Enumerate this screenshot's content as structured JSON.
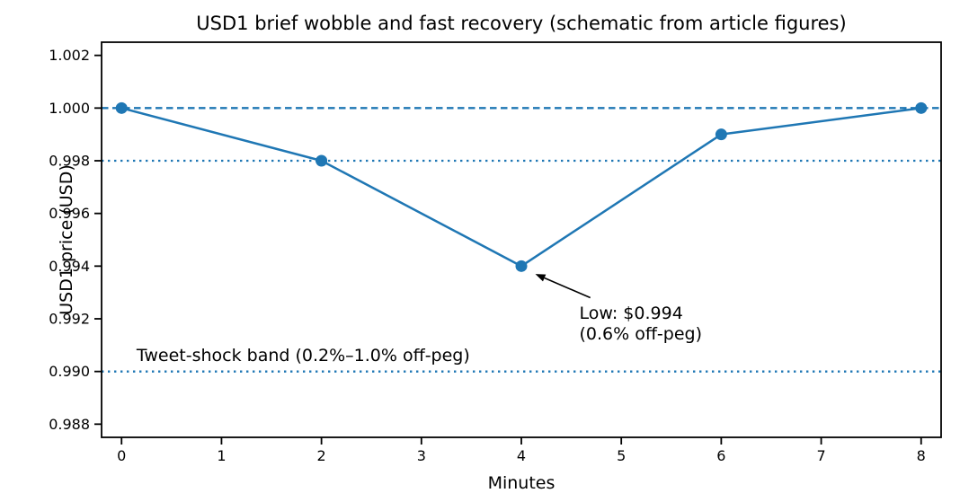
{
  "figure": {
    "background": "#ffffff"
  },
  "chart_data": {
    "type": "line",
    "title": "USD1 brief wobble and fast recovery (schematic from article figures)",
    "xlabel": "Minutes",
    "ylabel": "USD1 price (USD)",
    "x": [
      0,
      2,
      4,
      6,
      8
    ],
    "y": [
      1.0,
      0.998,
      0.994,
      0.999,
      1.0
    ],
    "series_name": "USD1 price",
    "xlim": [
      -0.2,
      8.2
    ],
    "ylim": [
      0.9875,
      1.0025
    ],
    "xticks": [
      0,
      1,
      2,
      3,
      4,
      5,
      6,
      7,
      8
    ],
    "xtick_labels": [
      "0",
      "1",
      "2",
      "3",
      "4",
      "5",
      "6",
      "7",
      "8"
    ],
    "yticks": [
      0.988,
      0.99,
      0.992,
      0.994,
      0.996,
      0.998,
      1.0,
      1.002
    ],
    "ytick_labels": [
      "0.988",
      "0.990",
      "0.992",
      "0.994",
      "0.996",
      "0.998",
      "1.000",
      "1.002"
    ],
    "grid": false,
    "legend": null,
    "line_color": "#1f77b4",
    "marker": "circle",
    "marker_radius": 6.5,
    "axis_color": "#000000",
    "reference_lines": [
      {
        "name": "peg-line",
        "y": 1.0,
        "style": "dashed",
        "color": "#1f77b4"
      },
      {
        "name": "band-upper-line",
        "y": 0.998,
        "style": "dotted",
        "color": "#1f77b4"
      },
      {
        "name": "band-lower-line",
        "y": 0.99,
        "style": "dotted",
        "color": "#1f77b4"
      }
    ],
    "annotation": {
      "lines": [
        "Low: $0.994",
        "(0.6% off-peg)"
      ],
      "point": {
        "x": 4.0,
        "y": 0.994
      },
      "text_pos": {
        "x": 4.58,
        "y": 0.992
      },
      "arrow_tail": {
        "x": 4.69,
        "y": 0.9928
      },
      "arrow_head": {
        "x": 4.14,
        "y": 0.9937
      },
      "arrow_color": "#000000"
    },
    "band_label": {
      "text": "Tweet-shock band (0.2%–1.0% off-peg)",
      "pos": {
        "x": 0.15,
        "y": 0.9904
      }
    }
  }
}
